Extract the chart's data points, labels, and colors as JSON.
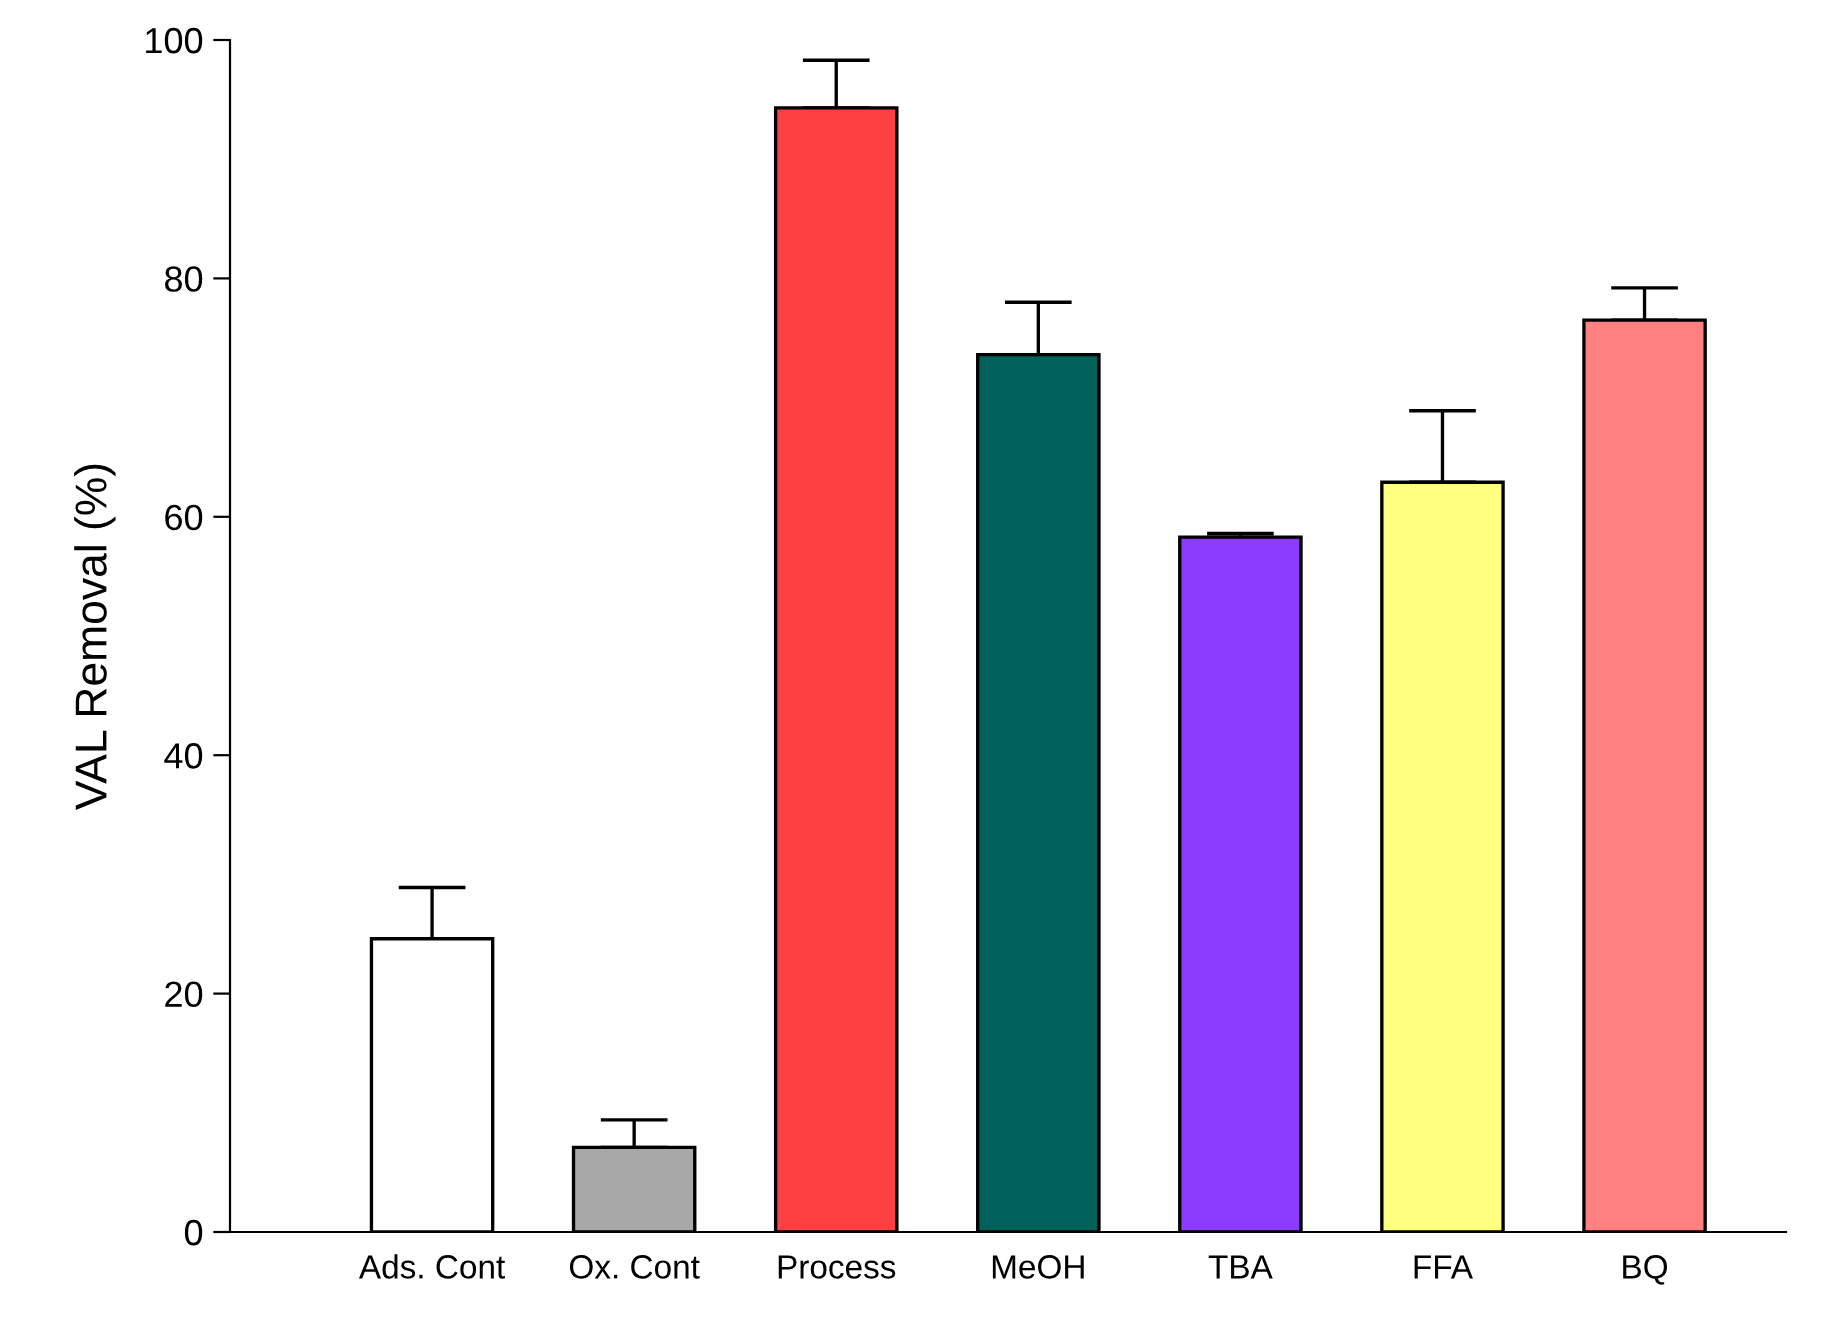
{
  "chart_data": {
    "type": "bar",
    "ylabel": "VAL Removal (%)",
    "categories": [
      "Ads. Cont",
      "Ox. Cont",
      "Process",
      "MeOH",
      "TBA",
      "FFA",
      "BQ"
    ],
    "values": [
      24.6,
      7.1,
      94.3,
      73.6,
      58.3,
      62.9,
      76.5
    ],
    "errors": [
      [
        24.6,
        28.9
      ],
      [
        7.1,
        9.4
      ],
      [
        94.3,
        98.3
      ],
      [
        73.6,
        78.0
      ],
      [
        58.3,
        58.6
      ],
      [
        62.9,
        68.9
      ],
      [
        76.5,
        79.2
      ]
    ],
    "colors": [
      "#ffffff",
      "#a8a8a8",
      "#ff4040",
      "#00605a",
      "#8c3cff",
      "#ffff80",
      "#ff8080"
    ],
    "ylim": [
      0,
      100
    ],
    "yticks": [
      0,
      20,
      40,
      60,
      80,
      100
    ],
    "grid": false,
    "legend": false
  }
}
